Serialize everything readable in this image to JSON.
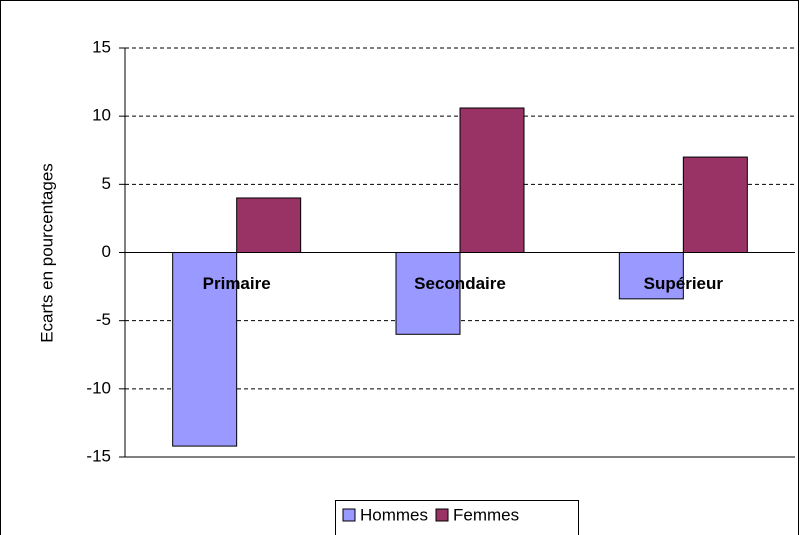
{
  "chart_data": {
    "type": "bar",
    "y_label": "Ecarts en pourcentages",
    "categories": [
      "Primaire",
      "Secondaire",
      "Supérieur"
    ],
    "series": [
      {
        "name": "Hommes",
        "color": "#9999ff",
        "values": [
          -14.2,
          -6.0,
          -3.4
        ]
      },
      {
        "name": "Femmes",
        "color": "#993366",
        "values": [
          4.0,
          10.6,
          7.0
        ]
      }
    ],
    "ylim": [
      -15,
      15
    ],
    "yticks": [
      -15,
      -10,
      -5,
      0,
      5,
      10,
      15
    ],
    "grid": true,
    "legend": "bottom"
  }
}
